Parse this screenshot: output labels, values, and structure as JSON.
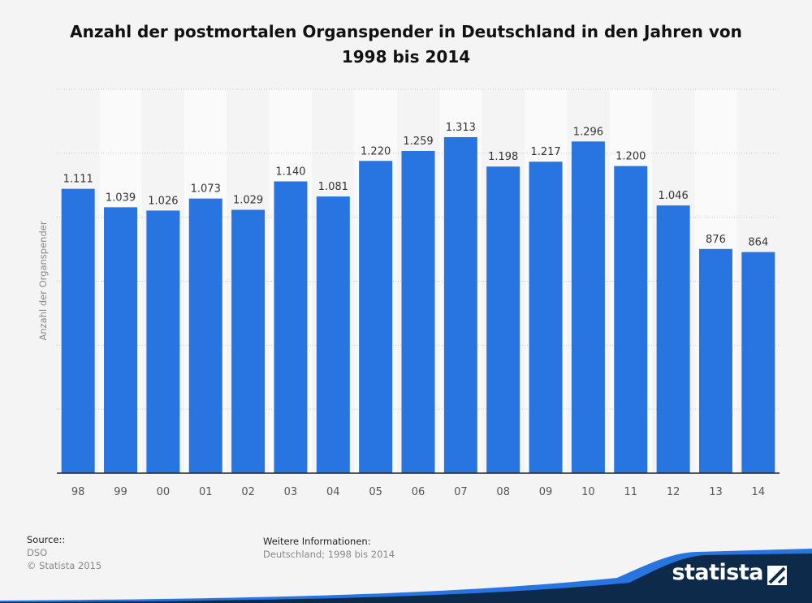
{
  "chart_data": {
    "type": "bar",
    "title": "Anzahl der postmortalen Organspender in Deutschland in den Jahren von 1998 bis 2014",
    "ylabel": "Anzahl der Organspender",
    "categories": [
      "98",
      "99",
      "00",
      "01",
      "02",
      "03",
      "04",
      "05",
      "06",
      "07",
      "08",
      "09",
      "10",
      "11",
      "12",
      "13",
      "14"
    ],
    "values": [
      1111,
      1039,
      1026,
      1073,
      1029,
      1140,
      1081,
      1220,
      1259,
      1313,
      1198,
      1217,
      1296,
      1200,
      1046,
      876,
      864
    ],
    "value_labels": [
      "1.111",
      "1.039",
      "1.026",
      "1.073",
      "1.029",
      "1.140",
      "1.081",
      "1.220",
      "1.259",
      "1.313",
      "1.198",
      "1.217",
      "1.296",
      "1.200",
      "1.046",
      "876",
      "864"
    ],
    "ylim": [
      0,
      1500
    ],
    "grid": true,
    "bar_color": "#2874e0"
  },
  "footer": {
    "source_heading": "Source::",
    "source_lines": [
      "DSO",
      "© Statista 2015"
    ],
    "info_heading": "Weitere Informationen:",
    "info_text": "Deutschland; 1998 bis 2014"
  },
  "brand": {
    "logo_text": "statista",
    "logo_icon": "statista-logo-icon",
    "colors": {
      "navy": "#0d2a4a",
      "blue": "#2874e0"
    }
  }
}
